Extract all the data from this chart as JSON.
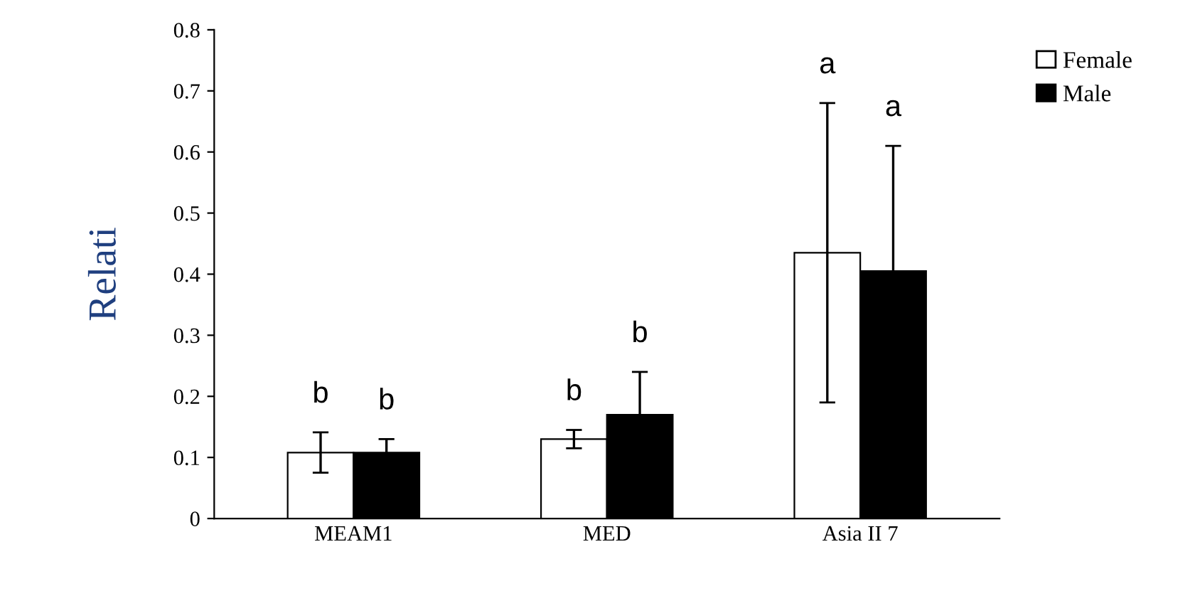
{
  "chart_data": {
    "type": "bar",
    "ylabel": "Relati",
    "categories": [
      "MEAM1",
      "MED",
      "Asia II 7"
    ],
    "series": [
      {
        "name": "Female",
        "color": "#ffffff",
        "values": [
          0.108,
          0.13,
          0.435
        ],
        "errors": [
          0.033,
          0.015,
          0.245
        ]
      },
      {
        "name": "Male",
        "color": "#000000",
        "values": [
          0.108,
          0.17,
          0.405
        ],
        "errors": [
          0.022,
          0.07,
          0.205
        ]
      }
    ],
    "ylim": [
      0,
      0.8
    ],
    "yticks": [
      0,
      0.1,
      0.2,
      0.3,
      0.4,
      0.5,
      0.6,
      0.7,
      0.8
    ],
    "grid": false,
    "legend": "top right",
    "annotations": [
      "b",
      "b",
      "b",
      "b",
      "a",
      "a"
    ]
  }
}
